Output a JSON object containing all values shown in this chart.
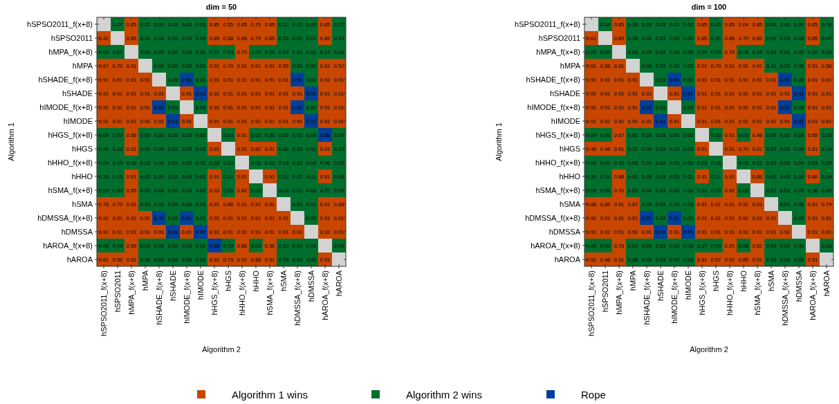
{
  "chart_data": [
    {
      "type": "heatmap",
      "title": "dim = 50",
      "xlabel": "Algorithm 2",
      "ylabel": "Algorithm 1",
      "data_labels": true,
      "annotations": [
        "Algorithm 1 wins",
        "Algorithm 2 wins",
        "Rope"
      ],
      "categories": [
        "hSPSO2011_f(x+8)",
        "hSPSO2011",
        "hMPA_f(x+8)",
        "hMPA",
        "hSHADE_f(x+8)",
        "hSHADE",
        "hIMODE_f(x+8)",
        "hIMODE",
        "hHGS_f(x+8)",
        "hHGS",
        "hHHO_f(x+8)",
        "hHHO",
        "hSMA_f(x+8)",
        "hSMA",
        "hDMSSA_f(x+8)",
        "hDMSSA",
        "hAROA_f(x+8)",
        "hAROA"
      ],
      "y_categories": [
        "hSPSO2011_f(x+8)",
        "hSPSO2011",
        "hMPA_f(x+8)",
        "hMPA",
        "hSHADE_f(x+8)",
        "hSHADE",
        "hIMODE_f(x+8)",
        "hIMODE",
        "hHGS_f(x+8)",
        "hHGS",
        "hHHO_f(x+8)",
        "hHHO",
        "hSMA_f(x+8)",
        "hSMA",
        "hDMSSA_f(x+8)",
        "hDMSSA",
        "hAROA_f(x+8)",
        "hAROA"
      ],
      "cells": [
        [
          null,
          0.27,
          0.85,
          0.21,
          0.03,
          0.03,
          0.03,
          0.03,
          0.85,
          0.55,
          0.85,
          0.76,
          0.85,
          0.12,
          0.03,
          0.03,
          0.85,
          0.27
        ],
        [
          0.42,
          null,
          0.85,
          0.24,
          0.03,
          0.03,
          0.03,
          0.03,
          0.85,
          0.58,
          0.85,
          0.79,
          0.85,
          0.15,
          0.03,
          0.03,
          0.85,
          0.33
        ],
        [
          0.09,
          0.09,
          null,
          0.03,
          0.03,
          0.03,
          0.03,
          0.03,
          0.21,
          0.03,
          0.79,
          0.03,
          0.24,
          0.03,
          0.03,
          0.03,
          0.27,
          0.03
        ],
        [
          0.67,
          0.7,
          0.91,
          null,
          0.03,
          0.03,
          0.03,
          0.03,
          0.91,
          0.79,
          0.91,
          0.91,
          0.91,
          0.55,
          0.03,
          0.03,
          0.91,
          0.52
        ],
        [
          0.91,
          0.91,
          0.91,
          0.91,
          null,
          0.03,
          0.91,
          0.03,
          0.91,
          0.91,
          0.91,
          0.91,
          0.91,
          0.91,
          0.91,
          0.03,
          0.91,
          0.91
        ],
        [
          0.91,
          0.91,
          0.91,
          0.91,
          0.91,
          null,
          0.91,
          0.91,
          0.91,
          0.91,
          0.91,
          0.91,
          0.91,
          0.91,
          0.91,
          0.91,
          0.91,
          0.91
        ],
        [
          0.91,
          0.91,
          0.91,
          0.91,
          0.91,
          0.03,
          null,
          0.03,
          0.91,
          0.91,
          0.91,
          0.91,
          0.91,
          0.91,
          0.91,
          0.03,
          0.91,
          0.91
        ],
        [
          0.91,
          0.91,
          0.91,
          0.91,
          0.91,
          0.91,
          0.91,
          null,
          0.91,
          0.91,
          0.91,
          0.91,
          0.91,
          0.91,
          0.91,
          0.91,
          0.91,
          0.91
        ],
        [
          0.09,
          0.09,
          0.58,
          0.03,
          0.03,
          0.03,
          0.03,
          0.03,
          null,
          0.03,
          0.91,
          0.03,
          0.3,
          0.03,
          0.03,
          0.03,
          0.58,
          0.03
        ],
        [
          0.39,
          0.33,
          0.91,
          0.09,
          0.03,
          0.03,
          0.03,
          0.03,
          0.91,
          null,
          0.91,
          0.82,
          0.91,
          0.06,
          0.03,
          0.03,
          0.91,
          0.12
        ],
        [
          0.09,
          0.09,
          0.09,
          0.03,
          0.03,
          0.03,
          0.03,
          0.03,
          0.03,
          0.03,
          null,
          0.03,
          0.12,
          0.03,
          0.03,
          0.03,
          0.06,
          0.03
        ],
        [
          0.18,
          0.15,
          0.91,
          0.03,
          0.03,
          0.03,
          0.03,
          0.03,
          0.91,
          0.12,
          0.91,
          null,
          0.91,
          0.03,
          0.03,
          0.03,
          0.91,
          0.06
        ],
        [
          0.09,
          0.09,
          0.55,
          0.03,
          0.03,
          0.03,
          0.03,
          0.03,
          0.33,
          0.03,
          0.82,
          0.03,
          null,
          0.03,
          0.03,
          0.03,
          0.27,
          0.03
        ],
        [
          0.76,
          0.73,
          0.91,
          0.33,
          0.03,
          0.03,
          0.03,
          0.03,
          0.91,
          0.88,
          0.91,
          0.91,
          0.91,
          null,
          0.03,
          0.03,
          0.91,
          0.58
        ],
        [
          0.91,
          0.91,
          0.91,
          0.91,
          0.91,
          0.03,
          0.91,
          0.03,
          0.91,
          0.91,
          0.91,
          0.91,
          0.91,
          0.91,
          null,
          0.03,
          0.91,
          0.91
        ],
        [
          0.91,
          0.91,
          0.91,
          0.91,
          0.91,
          0.91,
          0.91,
          0.91,
          0.91,
          0.91,
          0.91,
          0.91,
          0.91,
          0.91,
          0.91,
          null,
          0.91,
          0.91
        ],
        [
          0.09,
          0.09,
          0.55,
          0.03,
          0.03,
          0.03,
          0.03,
          0.03,
          0.58,
          0.03,
          0.88,
          0.03,
          0.36,
          0.03,
          0.03,
          0.03,
          null,
          0.03
        ],
        [
          0.61,
          0.55,
          0.91,
          0.36,
          0.03,
          0.03,
          0.03,
          0.03,
          0.91,
          0.73,
          0.91,
          0.88,
          0.91,
          0.33,
          0.03,
          0.03,
          0.91,
          null
        ]
      ],
      "cell_labels": [
        [
          null,
          "0.27",
          "0.85",
          "0.21",
          "0.03",
          "0.03",
          "0.03",
          "0.03",
          "0.85",
          "0.55",
          "0.85",
          "0.76",
          "0.85",
          "0.12",
          "0.03",
          "0.03",
          "0.85",
          "0.27"
        ],
        [
          "0.42",
          null,
          "0.85",
          "0.24",
          "0.03",
          "0.03",
          "0.03",
          "0.03",
          "0.85",
          "0.58",
          "0.85",
          "0.79",
          "0.85",
          "0.15",
          "0.03",
          "0.03",
          "0.85",
          "0.33"
        ],
        [
          "0.09",
          "0.09",
          null,
          "0.03",
          "0.03",
          "0.03",
          "0.03",
          "0.03",
          "0.21",
          "0.03",
          "0.79",
          "0.03",
          "0.24",
          "0.03",
          "0.03",
          "0.03",
          "0.27",
          "0.03"
        ],
        [
          "0.67",
          "0.70",
          "0.91",
          null,
          "0.03",
          "0.03",
          "0.03",
          "0.03",
          "0.91",
          "0.79",
          "0.91",
          "0.91",
          "0.91",
          "0.55",
          "0.03",
          "0.03",
          "0.91",
          "0.52"
        ],
        [
          "0.91",
          "0.91",
          "0.91",
          "0.91",
          null,
          "0.03",
          "0.91",
          "0.03",
          "0.91",
          "0.91",
          "0.91",
          "0.91",
          "0.91",
          "0.91",
          "0.91",
          "0.03",
          "0.91",
          "0.91"
        ],
        [
          "0.91",
          "0.91",
          "0.91",
          "0.91",
          "0.91",
          null,
          "0.91",
          "0.91",
          "0.91",
          "0.91",
          "0.91",
          "0.91",
          "0.91",
          "0.91",
          "0.91",
          "0.91",
          "0.91",
          "0.91"
        ],
        [
          "0.91",
          "0.91",
          "0.91",
          "0.91",
          "0.91",
          "0.03",
          null,
          "0.03",
          "0.91",
          "0.91",
          "0.91",
          "0.91",
          "0.91",
          "0.91",
          "0.91",
          "0.03",
          "0.91",
          "0.91"
        ],
        [
          "0.91",
          "0.91",
          "0.91",
          "0.91",
          "0.91",
          "0.91",
          "0.91",
          null,
          "0.91",
          "0.91",
          "0.91",
          "0.91",
          "0.91",
          "0.91",
          "0.91",
          "0.91",
          "0.91",
          "0.91"
        ],
        [
          "0.09",
          "0.09",
          "0.58",
          "0.03",
          "0.03",
          "0.03",
          "0.03",
          "0.03",
          null,
          "0.03",
          "0.91",
          "0.03",
          "0.30",
          "0.03",
          "0.03",
          "0.03",
          "0.58",
          "0.03"
        ],
        [
          "0.39",
          "0.33",
          "0.91",
          "0.09",
          "0.03",
          "0.03",
          "0.03",
          "0.03",
          "0.91",
          null,
          "0.91",
          "0.82",
          "0.91",
          "0.06",
          "0.03",
          "0.03",
          "0.91",
          "0.12"
        ],
        [
          "0.09",
          "0.09",
          "0.09",
          "0.03",
          "0.03",
          "0.03",
          "0.03",
          "0.03",
          "0.03",
          "0.03",
          null,
          "0.03",
          "0.12",
          "0.03",
          "0.03",
          "0.03",
          "0.06",
          "0.03"
        ],
        [
          "0.18",
          "0.15",
          "0.91",
          "0.03",
          "0.03",
          "0.03",
          "0.03",
          "0.03",
          "0.91",
          "0.12",
          "0.91",
          null,
          "0.91",
          "0.03",
          "0.03",
          "0.03",
          "0.91",
          "0.06"
        ],
        [
          "0.09",
          "0.09",
          "0.55",
          "0.03",
          "0.03",
          "0.03",
          "0.03",
          "0.03",
          "0.33",
          "0.03",
          "0.82",
          "0.03",
          null,
          "0.03",
          "0.03",
          "0.03",
          "0.27",
          "0.03"
        ],
        [
          "0.76",
          "0.73",
          "0.91",
          "0.33",
          "0.03",
          "0.03",
          "0.03",
          "0.03",
          "0.91",
          "0.88",
          "0.91",
          "0.91",
          "0.91",
          null,
          "0.03",
          "0.03",
          "0.91",
          "0.58"
        ],
        [
          "0.91",
          "0.91",
          "0.91",
          "0.91",
          "0.91",
          "0.03",
          "0.91",
          "0.03",
          "0.91",
          "0.91",
          "0.91",
          "0.91",
          "0.91",
          "0.91",
          null,
          "0.03",
          "0.91",
          "0.91"
        ],
        [
          "0.91",
          "0.91",
          "0.91",
          "0.91",
          "0.91",
          "0.91",
          "0.91",
          "0.91",
          "0.91",
          "0.91",
          "0.91",
          "0.91",
          "0.91",
          "0.91",
          "0.91",
          null,
          "0.91",
          "0.91"
        ],
        [
          "0.09",
          "0.09",
          "0.55",
          "0.03",
          "0.03",
          "0.03",
          "0.03",
          "0.03",
          "0.58",
          "0.03",
          "0.88",
          "0.03",
          "0.36",
          "0.03",
          "0.03",
          "0.03",
          null,
          "0.03"
        ],
        [
          "0.61",
          "0.55",
          "0.91",
          "0.36",
          "0.03",
          "0.03",
          "0.03",
          "0.03",
          "0.91",
          "0.73",
          "0.91",
          "0.88",
          "0.91",
          "0.33",
          "0.03",
          "0.03",
          "0.91",
          null
        ]
      ],
      "colors": [
        [
          "#d3d3d3",
          "#006f2d",
          "#c84600",
          "#006f2d",
          "#006f2d",
          "#006f2d",
          "#006f2d",
          "#006f2d",
          "#c84600",
          "#c84600",
          "#c84600",
          "#c84600",
          "#c84600",
          "#006f2d",
          "#006f2d",
          "#006f2d",
          "#c84600",
          "#006f2d"
        ],
        [
          "#c84600",
          "#d3d3d3",
          "#c84600",
          "#006f2d",
          "#006f2d",
          "#006f2d",
          "#006f2d",
          "#006f2d",
          "#c84600",
          "#c84600",
          "#c84600",
          "#c84600",
          "#c84600",
          "#006f2d",
          "#006f2d",
          "#006f2d",
          "#c84600",
          "#006f2d"
        ],
        [
          "#006f2d",
          "#006f2d",
          "#d3d3d3",
          "#006f2d",
          "#006f2d",
          "#006f2d",
          "#006f2d",
          "#006f2d",
          "#006f2d",
          "#006f2d",
          "#c84600",
          "#006f2d",
          "#006f2d",
          "#006f2d",
          "#006f2d",
          "#006f2d",
          "#006f2d",
          "#006f2d"
        ],
        [
          "#c84600",
          "#c84600",
          "#c84600",
          "#d3d3d3",
          "#006f2d",
          "#006f2d",
          "#006f2d",
          "#006f2d",
          "#c84600",
          "#c84600",
          "#c84600",
          "#c84600",
          "#c84600",
          "#c84600",
          "#006f2d",
          "#006f2d",
          "#c84600",
          "#c84600"
        ],
        [
          "#c84600",
          "#c84600",
          "#c84600",
          "#c84600",
          "#d3d3d3",
          "#006f2d",
          "#003f9a",
          "#006f2d",
          "#c84600",
          "#c84600",
          "#c84600",
          "#c84600",
          "#c84600",
          "#c84600",
          "#003f9a",
          "#006f2d",
          "#c84600",
          "#c84600"
        ],
        [
          "#c84600",
          "#c84600",
          "#c84600",
          "#c84600",
          "#c84600",
          "#d3d3d3",
          "#c84600",
          "#003f9a",
          "#c84600",
          "#c84600",
          "#c84600",
          "#c84600",
          "#c84600",
          "#c84600",
          "#c84600",
          "#003f9a",
          "#c84600",
          "#c84600"
        ],
        [
          "#c84600",
          "#c84600",
          "#c84600",
          "#c84600",
          "#003f9a",
          "#006f2d",
          "#d3d3d3",
          "#006f2d",
          "#c84600",
          "#c84600",
          "#c84600",
          "#c84600",
          "#c84600",
          "#c84600",
          "#003f9a",
          "#006f2d",
          "#c84600",
          "#c84600"
        ],
        [
          "#c84600",
          "#c84600",
          "#c84600",
          "#c84600",
          "#c84600",
          "#003f9a",
          "#c84600",
          "#d3d3d3",
          "#c84600",
          "#c84600",
          "#c84600",
          "#c84600",
          "#c84600",
          "#c84600",
          "#c84600",
          "#003f9a",
          "#c84600",
          "#c84600"
        ],
        [
          "#006f2d",
          "#006f2d",
          "#c84600",
          "#006f2d",
          "#006f2d",
          "#006f2d",
          "#006f2d",
          "#006f2d",
          "#d3d3d3",
          "#006f2d",
          "#c84600",
          "#006f2d",
          "#006f2d",
          "#006f2d",
          "#006f2d",
          "#006f2d",
          "#003f9a",
          "#006f2d"
        ],
        [
          "#006f2d",
          "#006f2d",
          "#c84600",
          "#006f2d",
          "#006f2d",
          "#006f2d",
          "#006f2d",
          "#006f2d",
          "#c84600",
          "#d3d3d3",
          "#c84600",
          "#c84600",
          "#c84600",
          "#006f2d",
          "#006f2d",
          "#006f2d",
          "#c84600",
          "#006f2d"
        ],
        [
          "#006f2d",
          "#006f2d",
          "#006f2d",
          "#006f2d",
          "#006f2d",
          "#006f2d",
          "#006f2d",
          "#006f2d",
          "#006f2d",
          "#006f2d",
          "#d3d3d3",
          "#006f2d",
          "#006f2d",
          "#006f2d",
          "#006f2d",
          "#006f2d",
          "#006f2d",
          "#006f2d"
        ],
        [
          "#006f2d",
          "#006f2d",
          "#c84600",
          "#006f2d",
          "#006f2d",
          "#006f2d",
          "#006f2d",
          "#006f2d",
          "#c84600",
          "#006f2d",
          "#c84600",
          "#d3d3d3",
          "#c84600",
          "#006f2d",
          "#006f2d",
          "#006f2d",
          "#c84600",
          "#006f2d"
        ],
        [
          "#006f2d",
          "#006f2d",
          "#c84600",
          "#006f2d",
          "#006f2d",
          "#006f2d",
          "#006f2d",
          "#006f2d",
          "#c84600",
          "#006f2d",
          "#c84600",
          "#006f2d",
          "#d3d3d3",
          "#006f2d",
          "#006f2d",
          "#006f2d",
          "#006f2d",
          "#006f2d"
        ],
        [
          "#c84600",
          "#c84600",
          "#c84600",
          "#006f2d",
          "#006f2d",
          "#006f2d",
          "#006f2d",
          "#006f2d",
          "#c84600",
          "#c84600",
          "#c84600",
          "#c84600",
          "#c84600",
          "#d3d3d3",
          "#006f2d",
          "#006f2d",
          "#c84600",
          "#c84600"
        ],
        [
          "#c84600",
          "#c84600",
          "#c84600",
          "#c84600",
          "#003f9a",
          "#006f2d",
          "#003f9a",
          "#006f2d",
          "#c84600",
          "#c84600",
          "#c84600",
          "#c84600",
          "#c84600",
          "#c84600",
          "#d3d3d3",
          "#006f2d",
          "#c84600",
          "#c84600"
        ],
        [
          "#c84600",
          "#c84600",
          "#c84600",
          "#c84600",
          "#c84600",
          "#003f9a",
          "#c84600",
          "#003f9a",
          "#c84600",
          "#c84600",
          "#c84600",
          "#c84600",
          "#c84600",
          "#c84600",
          "#c84600",
          "#d3d3d3",
          "#c84600",
          "#c84600"
        ],
        [
          "#006f2d",
          "#006f2d",
          "#c84600",
          "#006f2d",
          "#006f2d",
          "#006f2d",
          "#006f2d",
          "#006f2d",
          "#003f9a",
          "#006f2d",
          "#c84600",
          "#006f2d",
          "#c84600",
          "#006f2d",
          "#006f2d",
          "#006f2d",
          "#d3d3d3",
          "#006f2d"
        ],
        [
          "#c84600",
          "#c84600",
          "#c84600",
          "#006f2d",
          "#006f2d",
          "#006f2d",
          "#006f2d",
          "#006f2d",
          "#c84600",
          "#c84600",
          "#c84600",
          "#c84600",
          "#c84600",
          "#006f2d",
          "#006f2d",
          "#006f2d",
          "#c84600",
          "#d3d3d3"
        ]
      ]
    },
    {
      "type": "heatmap",
      "title": "dim = 100",
      "xlabel": "Algorithm 2",
      "ylabel": "Algorithm 1",
      "data_labels": true,
      "categories": [
        "hSPSO2011_f(x+8)",
        "hSPSO2011",
        "hMPA_f(x+8)",
        "hMPA",
        "hSHADE_f(x+8)",
        "hSHADE",
        "hIMODE_f(x+8)",
        "hIMODE",
        "hHGS_f(x+8)",
        "hHGS",
        "hHHO_f(x+8)",
        "hHHO",
        "hSMA_f(x+8)",
        "hSMA",
        "hDMSSA_f(x+8)",
        "hDMSSA",
        "hAROA_f(x+8)",
        "hAROA"
      ],
      "y_categories": [
        "hSPSO2011_f(x+8)",
        "hSPSO2011",
        "hMPA_f(x+8)",
        "hMPA",
        "hSHADE_f(x+8)",
        "hSHADE",
        "hIMODE_f(x+8)",
        "hIMODE",
        "hHGS_f(x+8)",
        "hHGS",
        "hHHO_f(x+8)",
        "hHHO",
        "hSMA_f(x+8)",
        "hSMA",
        "hDMSSA_f(x+8)",
        "hDMSSA",
        "hAROA_f(x+8)",
        "hAROA"
      ],
      "cells": [
        [
          null,
          0.24,
          0.85,
          0.33,
          0.03,
          0.03,
          0.03,
          0.03,
          0.85,
          0.45,
          0.85,
          0.64,
          0.85,
          0.06,
          0.03,
          0.03,
          0.85,
          0.39
        ],
        [
          0.61,
          null,
          0.85,
          0.36,
          0.03,
          0.03,
          0.03,
          0.03,
          0.85,
          0.45,
          0.85,
          0.7,
          0.85,
          0.09,
          0.03,
          0.03,
          0.85,
          0.42
        ],
        [
          0.09,
          0.09,
          null,
          0.03,
          0.03,
          0.03,
          0.03,
          0.03,
          0.24,
          0.03,
          0.79,
          0.06,
          0.15,
          0.03,
          0.03,
          0.03,
          0.09,
          0.03
        ],
        [
          0.61,
          0.58,
          0.91,
          null,
          0.03,
          0.03,
          0.03,
          0.03,
          0.91,
          0.79,
          0.91,
          0.91,
          0.91,
          0.24,
          0.03,
          0.03,
          0.91,
          0.58
        ],
        [
          0.91,
          0.91,
          0.91,
          0.91,
          null,
          0.03,
          0.91,
          0.03,
          0.91,
          0.91,
          0.91,
          0.91,
          0.91,
          0.91,
          0.91,
          0.03,
          0.91,
          0.91
        ],
        [
          0.91,
          0.91,
          0.91,
          0.91,
          0.91,
          null,
          0.91,
          0.91,
          0.91,
          0.91,
          0.91,
          0.91,
          0.91,
          0.91,
          0.91,
          0.91,
          0.91,
          0.91
        ],
        [
          0.91,
          0.91,
          0.91,
          0.91,
          0.91,
          0.03,
          null,
          0.03,
          0.91,
          0.91,
          0.91,
          0.91,
          0.91,
          0.91,
          0.91,
          0.03,
          0.91,
          0.91
        ],
        [
          0.91,
          0.91,
          0.91,
          0.91,
          0.91,
          0.91,
          0.91,
          null,
          0.91,
          0.91,
          0.91,
          0.91,
          0.91,
          0.91,
          0.91,
          0.91,
          0.91,
          0.91
        ],
        [
          0.09,
          0.09,
          0.67,
          0.03,
          0.03,
          0.03,
          0.03,
          0.03,
          null,
          0.03,
          0.91,
          0.03,
          0.48,
          0.03,
          0.03,
          0.03,
          0.55,
          0.03
        ],
        [
          0.48,
          0.48,
          0.91,
          0.12,
          0.03,
          0.03,
          0.03,
          0.03,
          0.91,
          null,
          0.91,
          0.7,
          0.91,
          0.03,
          0.03,
          0.03,
          0.91,
          0.24
        ],
        [
          0.09,
          0.09,
          0.15,
          0.03,
          0.03,
          0.03,
          0.03,
          0.03,
          0.03,
          0.03,
          null,
          0.03,
          0.12,
          0.03,
          0.03,
          0.03,
          0.03,
          0.03
        ],
        [
          0.3,
          0.24,
          0.88,
          0.03,
          0.03,
          0.03,
          0.03,
          0.03,
          0.91,
          0.21,
          0.91,
          null,
          0.88,
          0.03,
          0.03,
          0.03,
          0.88,
          0.09
        ],
        [
          0.09,
          0.09,
          0.7,
          0.03,
          0.03,
          0.03,
          0.03,
          0.03,
          0.33,
          0.03,
          0.82,
          0.06,
          null,
          0.03,
          0.03,
          0.03,
          0.36,
          0.03
        ],
        [
          0.88,
          0.85,
          0.91,
          0.67,
          0.03,
          0.03,
          0.03,
          0.03,
          0.91,
          0.91,
          0.91,
          0.91,
          0.91,
          null,
          0.03,
          0.03,
          0.91,
          0.79
        ],
        [
          0.91,
          0.91,
          0.91,
          0.91,
          0.91,
          0.03,
          0.91,
          0.03,
          0.91,
          0.91,
          0.91,
          0.91,
          0.91,
          0.91,
          null,
          0.03,
          0.91,
          0.91
        ],
        [
          0.91,
          0.91,
          0.91,
          0.91,
          0.91,
          0.91,
          0.91,
          0.91,
          0.91,
          0.91,
          0.91,
          0.91,
          0.91,
          0.91,
          0.91,
          null,
          0.91,
          0.91
        ],
        [
          0.09,
          0.09,
          0.73,
          0.03,
          0.03,
          0.03,
          0.03,
          0.03,
          0.27,
          0.03,
          0.91,
          0.06,
          0.52,
          0.03,
          0.03,
          0.03,
          null,
          0.03
        ],
        [
          0.52,
          0.48,
          0.91,
          0.36,
          0.03,
          0.03,
          0.03,
          0.03,
          0.91,
          0.67,
          0.91,
          0.85,
          0.91,
          0.15,
          0.03,
          0.03,
          0.91,
          null
        ]
      ],
      "cell_labels": [
        [
          null,
          "0.24",
          "0.85",
          "0.33",
          "0.03",
          "0.03",
          "0.03",
          "0.03",
          "0.85",
          "0.45",
          "0.85",
          "0.64",
          "0.85",
          "0.06",
          "0.03",
          "0.03",
          "0.85",
          "0.39"
        ],
        [
          "0.61",
          null,
          "0.85",
          "0.36",
          "0.03",
          "0.03",
          "0.03",
          "0.03",
          "0.85",
          "0.45",
          "0.85",
          "0.70",
          "0.85",
          "0.09",
          "0.03",
          "0.03",
          "0.85",
          "0.42"
        ],
        [
          "0.09",
          "0.09",
          null,
          "0.03",
          "0.03",
          "0.03",
          "0.03",
          "0.03",
          "0.24",
          "0.03",
          "0.79",
          "0.06",
          "0.15",
          "0.03",
          "0.03",
          "0.03",
          "0.09",
          "0.03"
        ],
        [
          "0.61",
          "0.58",
          "0.91",
          null,
          "0.03",
          "0.03",
          "0.03",
          "0.03",
          "0.91",
          "0.79",
          "0.91",
          "0.91",
          "0.91",
          "0.24",
          "0.03",
          "0.03",
          "0.91",
          "0.58"
        ],
        [
          "0.91",
          "0.91",
          "0.91",
          "0.91",
          null,
          "0.03",
          "0.91",
          "0.03",
          "0.91",
          "0.91",
          "0.91",
          "0.91",
          "0.91",
          "0.91",
          "0.91",
          "0.03",
          "0.91",
          "0.91"
        ],
        [
          "0.91",
          "0.91",
          "0.91",
          "0.91",
          "0.91",
          null,
          "0.91",
          "0.91",
          "0.91",
          "0.91",
          "0.91",
          "0.91",
          "0.91",
          "0.91",
          "0.91",
          "0.91",
          "0.91",
          "0.91"
        ],
        [
          "0.91",
          "0.91",
          "0.91",
          "0.91",
          "0.91",
          "0.03",
          null,
          "0.03",
          "0.91",
          "0.91",
          "0.91",
          "0.91",
          "0.91",
          "0.91",
          "0.91",
          "0.03",
          "0.91",
          "0.91"
        ],
        [
          "0.91",
          "0.91",
          "0.91",
          "0.91",
          "0.91",
          "0.91",
          "0.91",
          null,
          "0.91",
          "0.91",
          "0.91",
          "0.91",
          "0.91",
          "0.91",
          "0.91",
          "0.91",
          "0.91",
          "0.91"
        ],
        [
          "0.09",
          "0.09",
          "0.67",
          "0.03",
          "0.03",
          "0.03",
          "0.03",
          "0.03",
          null,
          "0.03",
          "0.91",
          "0.03",
          "0.48",
          "0.03",
          "0.03",
          "0.03",
          "0.55",
          "0.03"
        ],
        [
          "0.48",
          "0.48",
          "0.91",
          "0.12",
          "0.03",
          "0.03",
          "0.03",
          "0.03",
          "0.91",
          null,
          "0.91",
          "0.70",
          "0.91",
          "0.03",
          "0.03",
          "0.03",
          "0.91",
          "0.24"
        ],
        [
          "0.09",
          "0.09",
          "0.15",
          "0.03",
          "0.03",
          "0.03",
          "0.03",
          "0.03",
          "0.03",
          "0.03",
          null,
          "0.03",
          "0.12",
          "0.03",
          "0.03",
          "0.03",
          "0.03",
          "0.03"
        ],
        [
          "0.30",
          "0.24",
          "0.88",
          "0.03",
          "0.03",
          "0.03",
          "0.03",
          "0.03",
          "0.91",
          "0.21",
          "0.91",
          null,
          "0.88",
          "0.03",
          "0.03",
          "0.03",
          "0.88",
          "0.09"
        ],
        [
          "0.09",
          "0.09",
          "0.70",
          "0.03",
          "0.03",
          "0.03",
          "0.03",
          "0.03",
          "0.33",
          "0.03",
          "0.82",
          "0.06",
          null,
          "0.03",
          "0.03",
          "0.03",
          "0.36",
          "0.03"
        ],
        [
          "0.88",
          "0.85",
          "0.91",
          "0.67",
          "0.03",
          "0.03",
          "0.03",
          "0.03",
          "0.91",
          "0.91",
          "0.91",
          "0.91",
          "0.91",
          null,
          "0.03",
          "0.03",
          "0.91",
          "0.79"
        ],
        [
          "0.91",
          "0.91",
          "0.91",
          "0.91",
          "0.91",
          "0.03",
          "0.91",
          "0.03",
          "0.91",
          "0.91",
          "0.91",
          "0.91",
          "0.91",
          "0.91",
          null,
          "0.03",
          "0.91",
          "0.91"
        ],
        [
          "0.91",
          "0.91",
          "0.91",
          "0.91",
          "0.91",
          "0.91",
          "0.91",
          "0.91",
          "0.91",
          "0.91",
          "0.91",
          "0.91",
          "0.91",
          "0.91",
          "0.91",
          null,
          "0.91",
          "0.91"
        ],
        [
          "0.09",
          "0.09",
          "0.73",
          "0.03",
          "0.03",
          "0.03",
          "0.03",
          "0.03",
          "0.27",
          "0.03",
          "0.91",
          "0.06",
          "0.52",
          "0.03",
          "0.03",
          "0.03",
          null,
          "0.03"
        ],
        [
          "0.52",
          "0.48",
          "0.91",
          "0.36",
          "0.03",
          "0.03",
          "0.03",
          "0.03",
          "0.91",
          "0.67",
          "0.91",
          "0.85",
          "0.91",
          "0.15",
          "0.03",
          "0.03",
          "0.91",
          null
        ]
      ],
      "colors": [
        [
          "#d3d3d3",
          "#006f2d",
          "#c84600",
          "#006f2d",
          "#006f2d",
          "#006f2d",
          "#006f2d",
          "#006f2d",
          "#c84600",
          "#006f2d",
          "#c84600",
          "#c84600",
          "#c84600",
          "#006f2d",
          "#006f2d",
          "#006f2d",
          "#c84600",
          "#006f2d"
        ],
        [
          "#c84600",
          "#d3d3d3",
          "#c84600",
          "#006f2d",
          "#006f2d",
          "#006f2d",
          "#006f2d",
          "#006f2d",
          "#c84600",
          "#006f2d",
          "#c84600",
          "#c84600",
          "#c84600",
          "#006f2d",
          "#006f2d",
          "#006f2d",
          "#c84600",
          "#006f2d"
        ],
        [
          "#006f2d",
          "#006f2d",
          "#d3d3d3",
          "#006f2d",
          "#006f2d",
          "#006f2d",
          "#006f2d",
          "#006f2d",
          "#006f2d",
          "#006f2d",
          "#c84600",
          "#006f2d",
          "#006f2d",
          "#006f2d",
          "#006f2d",
          "#006f2d",
          "#006f2d",
          "#006f2d"
        ],
        [
          "#c84600",
          "#c84600",
          "#c84600",
          "#d3d3d3",
          "#006f2d",
          "#006f2d",
          "#006f2d",
          "#006f2d",
          "#c84600",
          "#c84600",
          "#c84600",
          "#c84600",
          "#c84600",
          "#006f2d",
          "#006f2d",
          "#006f2d",
          "#c84600",
          "#c84600"
        ],
        [
          "#c84600",
          "#c84600",
          "#c84600",
          "#c84600",
          "#d3d3d3",
          "#006f2d",
          "#003f9a",
          "#006f2d",
          "#c84600",
          "#c84600",
          "#c84600",
          "#c84600",
          "#c84600",
          "#c84600",
          "#003f9a",
          "#006f2d",
          "#c84600",
          "#c84600"
        ],
        [
          "#c84600",
          "#c84600",
          "#c84600",
          "#c84600",
          "#c84600",
          "#d3d3d3",
          "#c84600",
          "#003f9a",
          "#c84600",
          "#c84600",
          "#c84600",
          "#c84600",
          "#c84600",
          "#c84600",
          "#c84600",
          "#003f9a",
          "#c84600",
          "#c84600"
        ],
        [
          "#c84600",
          "#c84600",
          "#c84600",
          "#c84600",
          "#003f9a",
          "#006f2d",
          "#d3d3d3",
          "#006f2d",
          "#c84600",
          "#c84600",
          "#c84600",
          "#c84600",
          "#c84600",
          "#c84600",
          "#003f9a",
          "#006f2d",
          "#c84600",
          "#c84600"
        ],
        [
          "#c84600",
          "#c84600",
          "#c84600",
          "#c84600",
          "#c84600",
          "#003f9a",
          "#c84600",
          "#d3d3d3",
          "#c84600",
          "#c84600",
          "#c84600",
          "#c84600",
          "#c84600",
          "#c84600",
          "#c84600",
          "#003f9a",
          "#c84600",
          "#c84600"
        ],
        [
          "#006f2d",
          "#006f2d",
          "#c84600",
          "#006f2d",
          "#006f2d",
          "#006f2d",
          "#006f2d",
          "#006f2d",
          "#d3d3d3",
          "#006f2d",
          "#c84600",
          "#006f2d",
          "#c84600",
          "#006f2d",
          "#006f2d",
          "#006f2d",
          "#c84600",
          "#006f2d"
        ],
        [
          "#c84600",
          "#c84600",
          "#c84600",
          "#006f2d",
          "#006f2d",
          "#006f2d",
          "#006f2d",
          "#006f2d",
          "#c84600",
          "#d3d3d3",
          "#c84600",
          "#c84600",
          "#c84600",
          "#006f2d",
          "#006f2d",
          "#006f2d",
          "#c84600",
          "#006f2d"
        ],
        [
          "#006f2d",
          "#006f2d",
          "#006f2d",
          "#006f2d",
          "#006f2d",
          "#006f2d",
          "#006f2d",
          "#006f2d",
          "#006f2d",
          "#006f2d",
          "#d3d3d3",
          "#006f2d",
          "#006f2d",
          "#006f2d",
          "#006f2d",
          "#006f2d",
          "#006f2d",
          "#006f2d"
        ],
        [
          "#006f2d",
          "#006f2d",
          "#c84600",
          "#006f2d",
          "#006f2d",
          "#006f2d",
          "#006f2d",
          "#006f2d",
          "#c84600",
          "#006f2d",
          "#c84600",
          "#d3d3d3",
          "#c84600",
          "#006f2d",
          "#006f2d",
          "#006f2d",
          "#c84600",
          "#006f2d"
        ],
        [
          "#006f2d",
          "#006f2d",
          "#c84600",
          "#006f2d",
          "#006f2d",
          "#006f2d",
          "#006f2d",
          "#006f2d",
          "#006f2d",
          "#006f2d",
          "#c84600",
          "#006f2d",
          "#d3d3d3",
          "#006f2d",
          "#006f2d",
          "#006f2d",
          "#006f2d",
          "#006f2d"
        ],
        [
          "#c84600",
          "#c84600",
          "#c84600",
          "#c84600",
          "#006f2d",
          "#006f2d",
          "#006f2d",
          "#006f2d",
          "#c84600",
          "#c84600",
          "#c84600",
          "#c84600",
          "#c84600",
          "#d3d3d3",
          "#006f2d",
          "#006f2d",
          "#c84600",
          "#c84600"
        ],
        [
          "#c84600",
          "#c84600",
          "#c84600",
          "#c84600",
          "#003f9a",
          "#006f2d",
          "#003f9a",
          "#006f2d",
          "#c84600",
          "#c84600",
          "#c84600",
          "#c84600",
          "#c84600",
          "#c84600",
          "#d3d3d3",
          "#006f2d",
          "#c84600",
          "#c84600"
        ],
        [
          "#c84600",
          "#c84600",
          "#c84600",
          "#c84600",
          "#c84600",
          "#003f9a",
          "#c84600",
          "#003f9a",
          "#c84600",
          "#c84600",
          "#c84600",
          "#c84600",
          "#c84600",
          "#c84600",
          "#c84600",
          "#d3d3d3",
          "#c84600",
          "#c84600"
        ],
        [
          "#006f2d",
          "#006f2d",
          "#c84600",
          "#006f2d",
          "#006f2d",
          "#006f2d",
          "#006f2d",
          "#006f2d",
          "#006f2d",
          "#006f2d",
          "#c84600",
          "#006f2d",
          "#c84600",
          "#006f2d",
          "#006f2d",
          "#006f2d",
          "#d3d3d3",
          "#006f2d"
        ],
        [
          "#c84600",
          "#c84600",
          "#c84600",
          "#006f2d",
          "#006f2d",
          "#006f2d",
          "#006f2d",
          "#006f2d",
          "#c84600",
          "#c84600",
          "#c84600",
          "#c84600",
          "#c84600",
          "#006f2d",
          "#006f2d",
          "#006f2d",
          "#c84600",
          "#d3d3d3"
        ]
      ]
    }
  ]
}
